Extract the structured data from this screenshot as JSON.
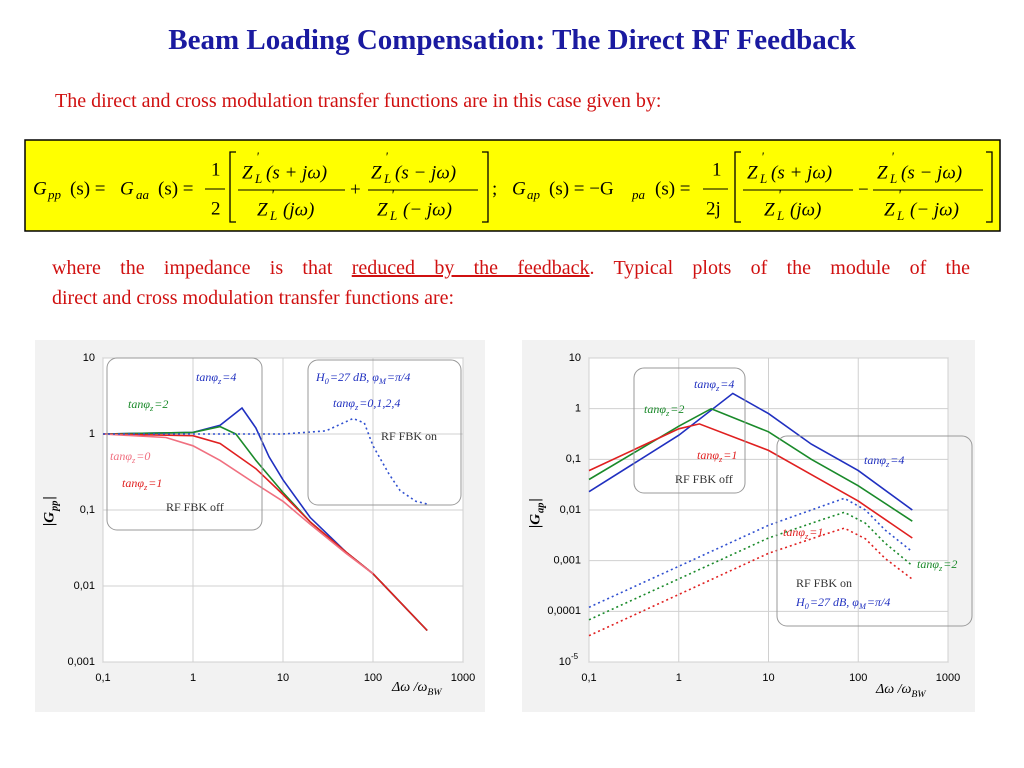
{
  "title": "Beam Loading Compensation: The Direct RF Feedback",
  "intro": "The direct and cross modulation transfer functions are in this case given by:",
  "formula": [
    "G",
    "pp",
    "(s) =",
    "G",
    "aa",
    "(s) =",
    "1",
    "2",
    "Z",
    "'",
    "L",
    "(s + jω)",
    "Z",
    "'",
    "L",
    "(jω)",
    "+",
    "Z",
    "'",
    "L",
    "(s − jω)",
    "Z",
    "'",
    "L",
    "(− jω)",
    ";",
    "G",
    "ap",
    "(s) = −G",
    "pa",
    "(s) =",
    "1",
    "2j",
    "Z",
    "'",
    "L",
    "(s + jω)",
    "Z",
    "'",
    "L",
    "(jω)",
    "−",
    "Z",
    "'",
    "L",
    "(s − jω)",
    "Z",
    "'",
    "L",
    "(− jω)"
  ],
  "paragraph": {
    "line1a": "where the impedance is that ",
    "link": "reduced by the feedback",
    "line1b": ". Typical plots of the module of the",
    "line2": "direct and cross modulation transfer functions are:"
  },
  "chart_data": [
    {
      "type": "line",
      "log_x": true,
      "log_y": true,
      "grid": true,
      "xlabel": [
        "Δω /ω",
        "BW"
      ],
      "ylabel": [
        "|G",
        "pp",
        "|"
      ],
      "xlim": [
        0.1,
        1000
      ],
      "ylim": [
        0.001,
        10
      ],
      "xticks": [
        {
          "value": 0.1,
          "label": "0,1"
        },
        1,
        10,
        100,
        1000
      ],
      "yticks": [
        {
          "value": 0.001,
          "label": "0,001"
        },
        {
          "value": 0.01,
          "label": "0,01"
        },
        {
          "value": 0.1,
          "label": "0,1"
        },
        1,
        10
      ],
      "series": [
        {
          "color": "#2030c0",
          "dash": false,
          "x": [
            0.1,
            1,
            2,
            3.5,
            5,
            7,
            10,
            20,
            50,
            100,
            400
          ],
          "values": [
            1,
            1.05,
            1.3,
            2.2,
            1.2,
            0.5,
            0.25,
            0.08,
            0.028,
            0.0145,
            0.0026
          ]
        },
        {
          "color": "#1a8a2a",
          "dash": false,
          "x": [
            0.1,
            1,
            2,
            3,
            5,
            10,
            20,
            50,
            100,
            400
          ],
          "values": [
            1,
            1.05,
            1.25,
            1,
            0.45,
            0.17,
            0.07,
            0.028,
            0.0145,
            0.0026
          ]
        },
        {
          "color": "#e02020",
          "dash": false,
          "x": [
            0.1,
            1,
            2,
            5,
            10,
            20,
            50,
            100,
            400
          ],
          "values": [
            1,
            0.95,
            0.75,
            0.35,
            0.16,
            0.07,
            0.028,
            0.0145,
            0.0026
          ]
        },
        {
          "color": "#f07080",
          "dash": false,
          "x": [
            0.1,
            0.5,
            1,
            2,
            5,
            10,
            20,
            50,
            100
          ],
          "values": [
            1,
            0.9,
            0.7,
            0.45,
            0.22,
            0.13,
            0.065,
            0.027,
            0.0145
          ]
        },
        {
          "color": "#3050d0",
          "dash": true,
          "x": [
            0.1,
            10,
            30,
            60,
            80,
            100,
            150,
            200,
            300,
            400
          ],
          "values": [
            1,
            1,
            1.1,
            1.6,
            1.4,
            0.7,
            0.3,
            0.18,
            0.13,
            0.12
          ]
        }
      ],
      "annotations": [
        {
          "parts": [
            "tanφ",
            "z",
            " =4"
          ],
          "color": "#2030c0"
        },
        {
          "parts": [
            "tanφ",
            "z",
            " =2"
          ],
          "color": "#1a8a2a"
        },
        {
          "parts": [
            "tanφ",
            "z",
            " =0"
          ],
          "color": "#f07080"
        },
        {
          "parts": [
            "tanφ",
            "z",
            " =1"
          ],
          "color": "#e02020"
        },
        {
          "parts": [
            "RF FBK off"
          ],
          "color": "#333333"
        },
        {
          "parts": [
            "H",
            "0",
            "=27 dB, φ",
            "M",
            " =π/4"
          ],
          "color": "#2030c0"
        },
        {
          "parts": [
            "tanφ",
            "z",
            " =0,1,2,4"
          ],
          "color": "#2030c0"
        },
        {
          "parts": [
            "RF FBK on"
          ],
          "color": "#333333"
        }
      ]
    },
    {
      "type": "line",
      "log_x": true,
      "log_y": true,
      "grid": true,
      "xlabel": [
        "Δω /ω",
        "BW"
      ],
      "ylabel": [
        "|G",
        "ap",
        "|"
      ],
      "xlim": [
        0.1,
        1000
      ],
      "ylim": [
        1e-05,
        10
      ],
      "xticks": [
        {
          "value": 0.1,
          "label": "0,1"
        },
        1,
        10,
        100,
        1000
      ],
      "yticks": [
        {
          "value": 1e-05,
          "label": "10",
          "sup": "-5"
        },
        {
          "value": 0.0001,
          "label": "0,0001"
        },
        {
          "value": 0.001,
          "label": "0,001"
        },
        {
          "value": 0.01,
          "label": "0,01"
        },
        {
          "value": 0.1,
          "label": "0,1"
        },
        1,
        10
      ],
      "series": [
        {
          "color": "#2030c0",
          "dash": false,
          "x": [
            0.1,
            1,
            4,
            10,
            30,
            100,
            400
          ],
          "values": [
            0.023,
            0.3,
            2,
            0.8,
            0.2,
            0.06,
            0.01
          ]
        },
        {
          "color": "#1a8a2a",
          "dash": false,
          "x": [
            0.1,
            1,
            2.3,
            10,
            30,
            100,
            400
          ],
          "values": [
            0.04,
            0.45,
            1,
            0.35,
            0.1,
            0.03,
            0.006
          ]
        },
        {
          "color": "#e02020",
          "dash": false,
          "x": [
            0.1,
            1,
            1.7,
            10,
            30,
            100,
            400
          ],
          "values": [
            0.06,
            0.4,
            0.5,
            0.15,
            0.05,
            0.015,
            0.0028
          ]
        },
        {
          "color": "#3050d0",
          "dash": true,
          "x": [
            0.1,
            10,
            40,
            70,
            120,
            200,
            400
          ],
          "values": [
            0.00012,
            0.005,
            0.012,
            0.017,
            0.01,
            0.004,
            0.0015
          ]
        },
        {
          "color": "#1a8a2a",
          "dash": true,
          "x": [
            0.1,
            10,
            40,
            70,
            120,
            200,
            400
          ],
          "values": [
            6.8e-05,
            0.0028,
            0.0065,
            0.009,
            0.0055,
            0.0022,
            0.0008
          ]
        },
        {
          "color": "#e02020",
          "dash": true,
          "x": [
            0.1,
            10,
            40,
            70,
            120,
            200,
            400
          ],
          "values": [
            3.3e-05,
            0.0014,
            0.0032,
            0.0044,
            0.0027,
            0.0011,
            0.00043
          ]
        }
      ],
      "annotations": [
        {
          "parts": [
            "tanφ",
            "z",
            " =4"
          ],
          "color": "#2030c0"
        },
        {
          "parts": [
            "tanφ",
            "z",
            " =2"
          ],
          "color": "#1a8a2a"
        },
        {
          "parts": [
            "tanφ",
            "z",
            " =1"
          ],
          "color": "#e02020"
        },
        {
          "parts": [
            "RF FBK off"
          ],
          "color": "#333333"
        },
        {
          "parts": [
            "tanφ",
            "z",
            " =4"
          ],
          "color": "#2030c0"
        },
        {
          "parts": [
            "tanφ",
            "z",
            " =1"
          ],
          "color": "#e02020"
        },
        {
          "parts": [
            "tanφ",
            "z",
            " =2"
          ],
          "color": "#1a8a2a"
        },
        {
          "parts": [
            "RF FBK on"
          ],
          "color": "#333333"
        },
        {
          "parts": [
            "H",
            "0",
            "=27 dB, φ",
            "M",
            " =π/4"
          ],
          "color": "#2030c0"
        }
      ]
    }
  ]
}
